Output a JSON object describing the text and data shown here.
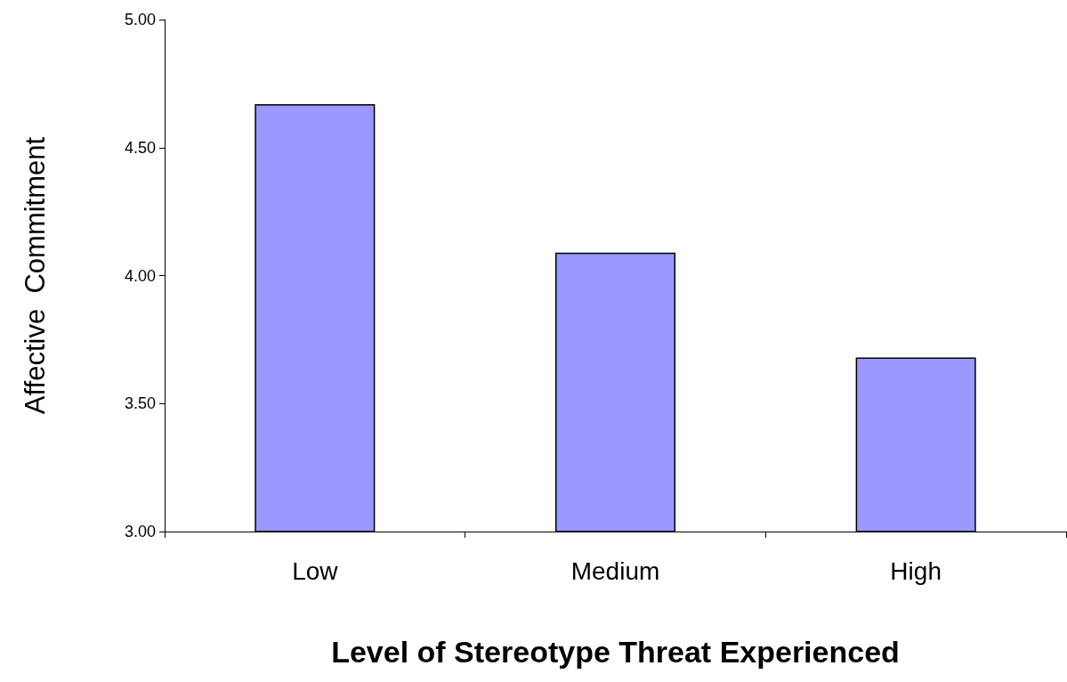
{
  "chart_data": {
    "type": "bar",
    "xlabel": "Level of Stereotype Threat Experienced",
    "ylabel": "Affective  Commitment",
    "categories": [
      "Low",
      "Medium",
      "High"
    ],
    "values": [
      4.67,
      4.09,
      3.68
    ],
    "color": "#9999ff",
    "ylim": [
      3,
      5
    ],
    "yticks": [
      {
        "value": 3,
        "label": "3.00"
      },
      {
        "value": 3.5,
        "label": "3.50"
      },
      {
        "value": 4,
        "label": "4.00"
      },
      {
        "value": 4.5,
        "label": "4.50"
      },
      {
        "value": 5,
        "label": "5.00"
      }
    ],
    "grid": false
  }
}
